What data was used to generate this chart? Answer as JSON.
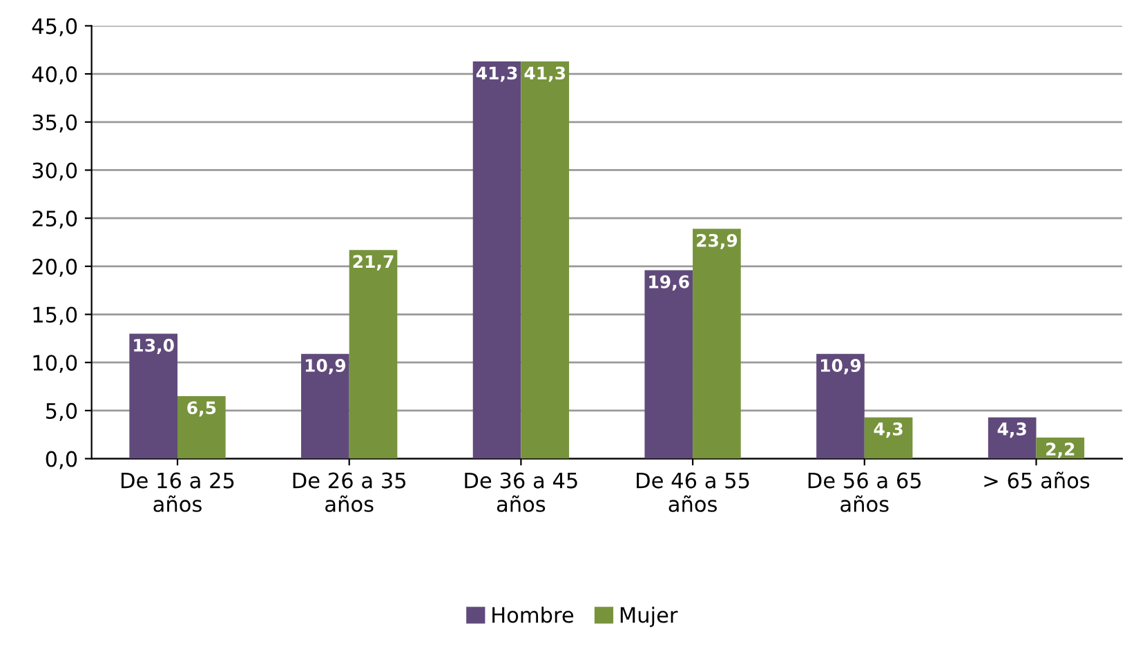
{
  "chart_data": {
    "type": "bar",
    "categories": [
      "De 16 a 25\naños",
      "De 26 a 35\naños",
      "De 36 a 45\naños",
      "De 46 a 55\naños",
      "De 56 a 65\naños",
      "> 65 años"
    ],
    "series": [
      {
        "name": "Hombre",
        "color": "#604a7b",
        "values": [
          13.0,
          10.9,
          41.3,
          19.6,
          10.9,
          4.3
        ],
        "value_labels": [
          "13,0",
          "10,9",
          "41,3",
          "19,6",
          "10,9",
          "4,3"
        ]
      },
      {
        "name": "Mujer",
        "color": "#77933c",
        "values": [
          6.5,
          21.7,
          41.3,
          23.9,
          4.3,
          2.2
        ],
        "value_labels": [
          "6,5",
          "21,7",
          "41,3",
          "23,9",
          "4,3",
          "2,2"
        ]
      }
    ],
    "ylim": [
      0,
      45
    ],
    "yticks": [
      {
        "value": 0,
        "label": "0,0"
      },
      {
        "value": 5,
        "label": "5,0"
      },
      {
        "value": 10,
        "label": "10,0"
      },
      {
        "value": 15,
        "label": "15,0"
      },
      {
        "value": 20,
        "label": "20,0"
      },
      {
        "value": 25,
        "label": "25,0"
      },
      {
        "value": 30,
        "label": "30,0"
      },
      {
        "value": 35,
        "label": "35,0"
      },
      {
        "value": 40,
        "label": "40,0"
      },
      {
        "value": 45,
        "label": "45,0"
      }
    ],
    "grid": "y",
    "legend": "bottom"
  }
}
